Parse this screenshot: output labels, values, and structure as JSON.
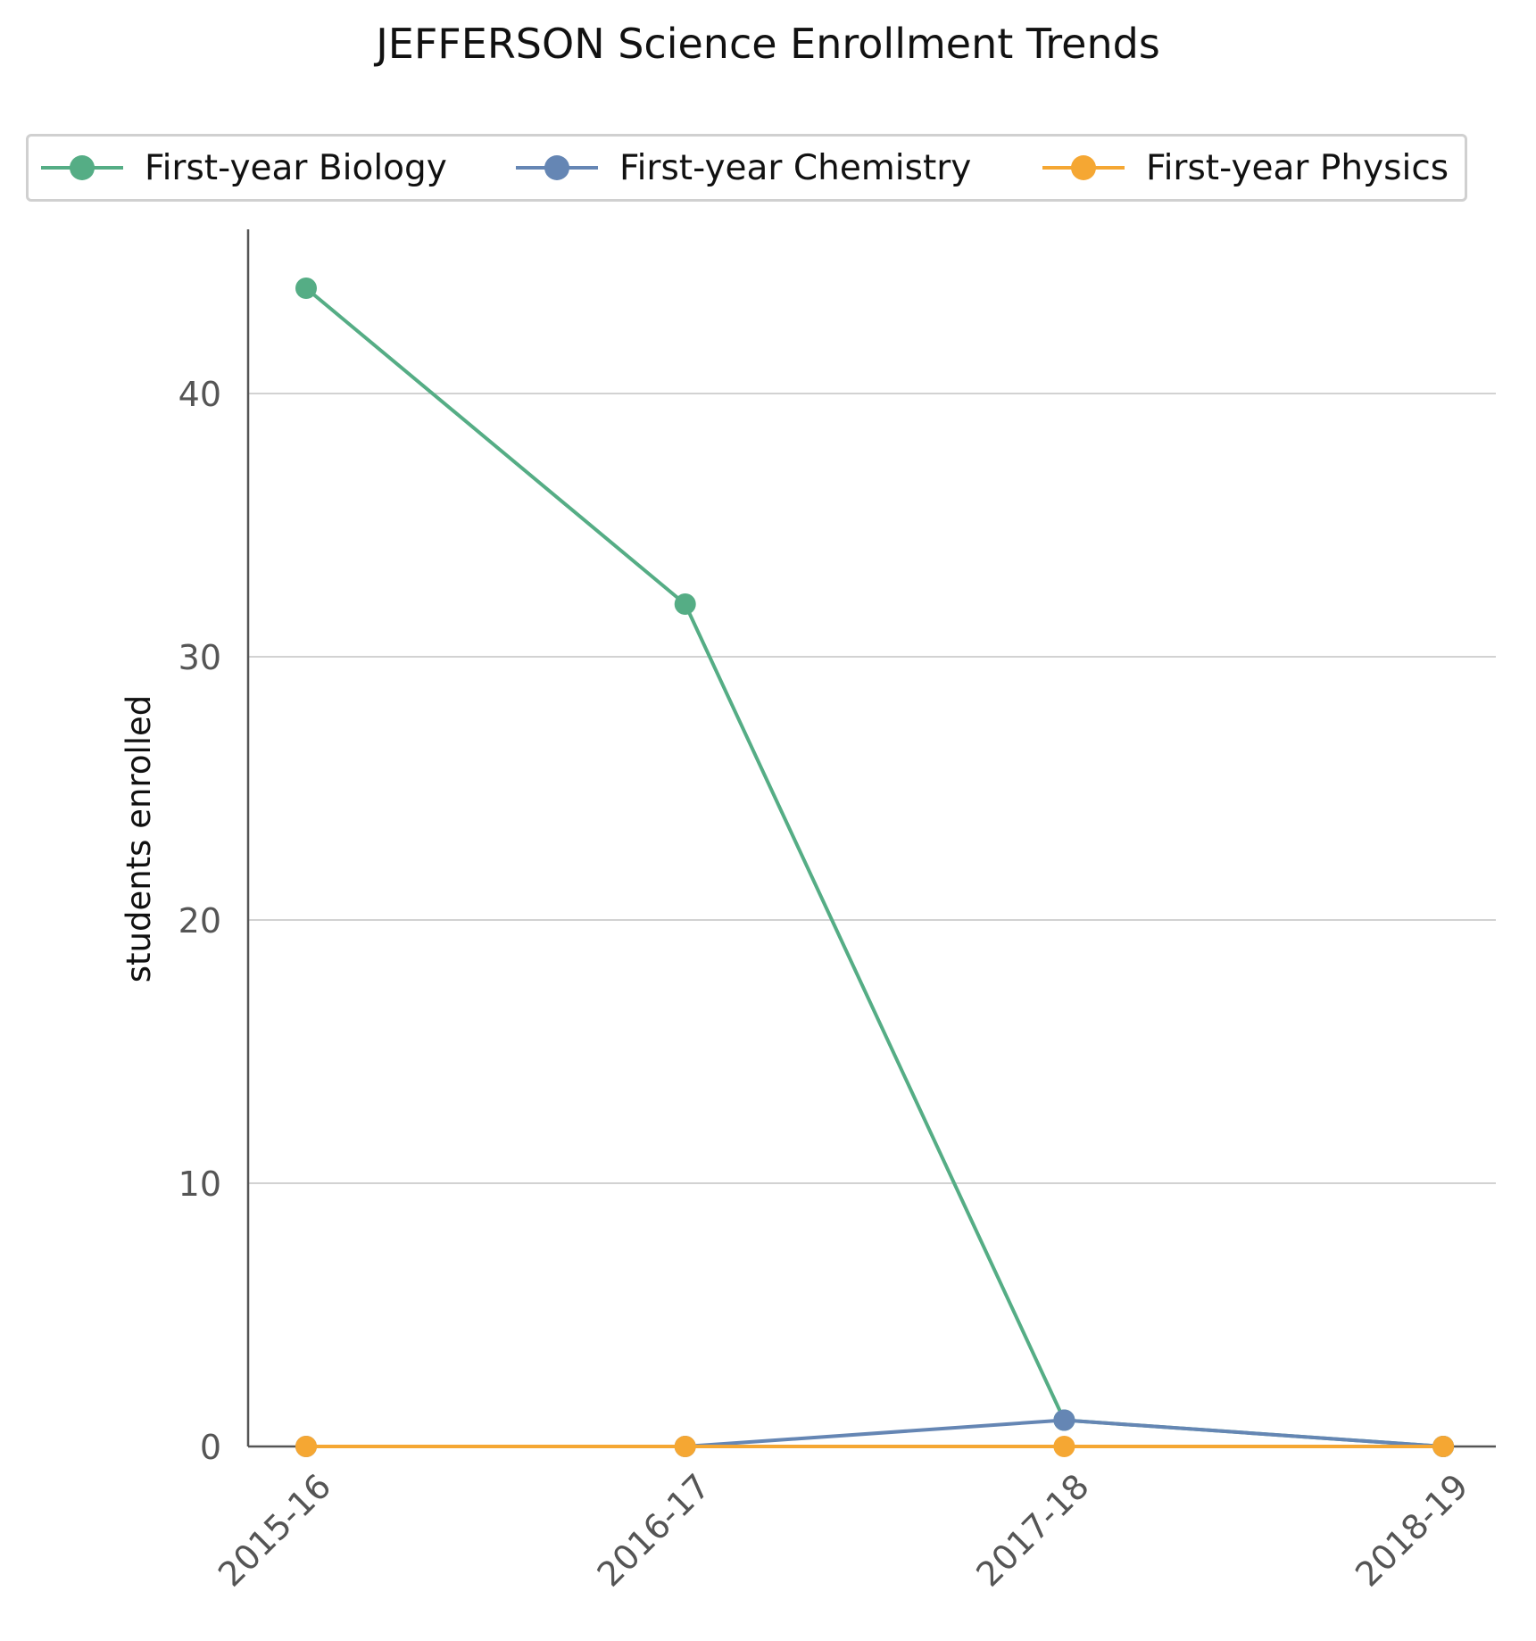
{
  "chart_data": {
    "type": "line",
    "title": "JEFFERSON Science Enrollment Trends",
    "xlabel": "",
    "ylabel": "students enrolled",
    "categories": [
      "2015-16",
      "2016-17",
      "2017-18",
      "2018-19"
    ],
    "ylim": [
      0,
      46
    ],
    "yticks": [
      0,
      10,
      20,
      30,
      40
    ],
    "grid": true,
    "legend_position": "top",
    "series": [
      {
        "name": "First-year Biology",
        "color": "#55ad85",
        "values": [
          44,
          32,
          1,
          0
        ]
      },
      {
        "name": "First-year Chemistry",
        "color": "#6586b4",
        "values": [
          0,
          0,
          1,
          0
        ]
      },
      {
        "name": "First-year Physics",
        "color": "#f5a733",
        "values": [
          0,
          0,
          0,
          0
        ]
      }
    ]
  }
}
